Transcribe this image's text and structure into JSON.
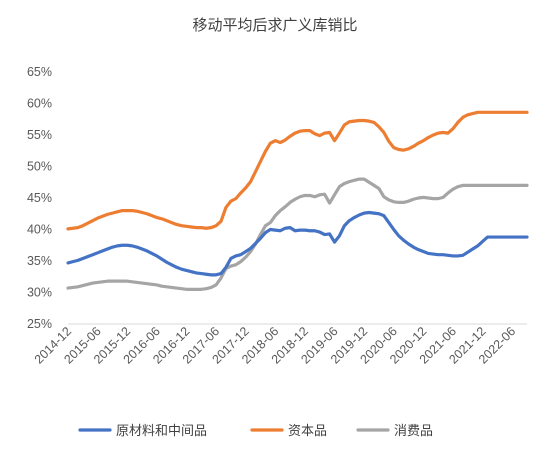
{
  "chart_data": {
    "type": "line",
    "title": "移动平均后求广义库销比",
    "xlabel": "",
    "ylabel": "",
    "ylim": [
      25,
      65
    ],
    "yticks": [
      "25%",
      "30%",
      "35%",
      "40%",
      "45%",
      "50%",
      "55%",
      "60%",
      "65%"
    ],
    "grid": false,
    "legend_position": "bottom",
    "x_tick_labels": [
      "2014-12",
      "2015-06",
      "2015-12",
      "2016-06",
      "2016-12",
      "2017-06",
      "2017-12",
      "2018-06",
      "2018-12",
      "2019-06",
      "2019-12",
      "2020-06",
      "2020-12",
      "2021-06",
      "2021-12",
      "2022-06"
    ],
    "x": [
      "2014-12",
      "2015-01",
      "2015-02",
      "2015-03",
      "2015-04",
      "2015-05",
      "2015-06",
      "2015-07",
      "2015-08",
      "2015-09",
      "2015-10",
      "2015-11",
      "2015-12",
      "2016-01",
      "2016-02",
      "2016-03",
      "2016-04",
      "2016-05",
      "2016-06",
      "2016-07",
      "2016-08",
      "2016-09",
      "2016-10",
      "2016-11",
      "2016-12",
      "2017-01",
      "2017-02",
      "2017-03",
      "2017-04",
      "2017-05",
      "2017-06",
      "2017-07",
      "2017-08",
      "2017-09",
      "2017-10",
      "2017-11",
      "2017-12",
      "2018-01",
      "2018-02",
      "2018-03",
      "2018-04",
      "2018-05",
      "2018-06",
      "2018-07",
      "2018-08",
      "2018-09",
      "2018-10",
      "2018-11",
      "2018-12",
      "2019-01",
      "2019-02",
      "2019-03",
      "2019-04",
      "2019-05",
      "2019-06",
      "2019-07",
      "2019-08",
      "2019-09",
      "2019-10",
      "2019-11",
      "2019-12",
      "2020-01",
      "2020-02",
      "2020-03",
      "2020-04",
      "2020-05",
      "2020-06",
      "2020-07",
      "2020-08",
      "2020-09",
      "2020-10",
      "2020-11",
      "2020-12",
      "2021-01",
      "2021-02",
      "2021-03",
      "2021-04",
      "2021-05",
      "2021-06",
      "2021-07",
      "2021-08",
      "2021-09",
      "2021-10",
      "2021-11",
      "2021-12",
      "2022-01",
      "2022-02",
      "2022-03",
      "2022-04",
      "2022-05",
      "2022-06",
      "2022-07",
      "2022-08",
      "2022-09"
    ],
    "series": [
      {
        "name": "原材料和中间品",
        "color": "#4472c4",
        "values": [
          34.7,
          34.9,
          35.1,
          35.4,
          35.7,
          36.0,
          36.3,
          36.6,
          36.9,
          37.2,
          37.4,
          37.5,
          37.5,
          37.4,
          37.2,
          36.9,
          36.6,
          36.2,
          35.8,
          35.3,
          34.8,
          34.4,
          34.0,
          33.7,
          33.5,
          33.3,
          33.1,
          33.0,
          32.9,
          32.8,
          32.8,
          33.0,
          34.0,
          35.4,
          35.8,
          36.0,
          36.5,
          37.0,
          37.8,
          38.6,
          39.5,
          40.0,
          39.9,
          39.8,
          40.2,
          40.3,
          39.8,
          39.9,
          39.9,
          39.8,
          39.8,
          39.6,
          39.2,
          39.3,
          38.0,
          39.0,
          40.6,
          41.4,
          41.9,
          42.3,
          42.6,
          42.7,
          42.6,
          42.5,
          42.2,
          41.1,
          40.0,
          39.0,
          38.3,
          37.7,
          37.2,
          36.8,
          36.5,
          36.2,
          36.1,
          36.0,
          36.0,
          35.9,
          35.8,
          35.8,
          35.9,
          36.4,
          36.9,
          37.4,
          38.1,
          38.8,
          38.8,
          38.8,
          38.8,
          38.8,
          38.8,
          38.8,
          38.8,
          38.8
        ]
      },
      {
        "name": "资本品",
        "color": "#ed7d31",
        "values": [
          40.1,
          40.2,
          40.3,
          40.6,
          41.0,
          41.4,
          41.8,
          42.1,
          42.4,
          42.6,
          42.8,
          43.0,
          43.0,
          43.0,
          42.9,
          42.7,
          42.5,
          42.2,
          41.9,
          41.7,
          41.4,
          41.1,
          40.8,
          40.6,
          40.5,
          40.4,
          40.3,
          40.3,
          40.2,
          40.3,
          40.6,
          41.3,
          43.5,
          44.5,
          44.9,
          45.8,
          46.6,
          47.6,
          49.2,
          50.8,
          52.4,
          53.7,
          54.1,
          53.8,
          54.2,
          54.8,
          55.3,
          55.6,
          55.7,
          55.7,
          55.2,
          54.9,
          55.3,
          55.4,
          54.1,
          55.3,
          56.6,
          57.1,
          57.2,
          57.3,
          57.3,
          57.2,
          57.0,
          56.3,
          55.4,
          54.0,
          53.0,
          52.7,
          52.6,
          52.8,
          53.2,
          53.7,
          54.1,
          54.6,
          55.0,
          55.3,
          55.4,
          55.3,
          56.0,
          57.0,
          57.8,
          58.2,
          58.4,
          58.6,
          58.6,
          58.6,
          58.6,
          58.6,
          58.6,
          58.6,
          58.6,
          58.6,
          58.6,
          58.6
        ]
      },
      {
        "name": "消费品",
        "color": "#a5a5a5",
        "values": [
          30.7,
          30.8,
          30.9,
          31.1,
          31.3,
          31.5,
          31.6,
          31.7,
          31.8,
          31.8,
          31.8,
          31.8,
          31.8,
          31.7,
          31.6,
          31.5,
          31.4,
          31.3,
          31.2,
          31.0,
          30.9,
          30.8,
          30.7,
          30.6,
          30.5,
          30.5,
          30.5,
          30.5,
          30.6,
          30.8,
          31.2,
          32.3,
          33.8,
          34.2,
          34.4,
          34.9,
          35.6,
          36.5,
          37.7,
          39.2,
          40.6,
          41.1,
          42.2,
          43.0,
          43.6,
          44.3,
          44.8,
          45.2,
          45.4,
          45.4,
          45.2,
          45.5,
          45.6,
          44.2,
          45.5,
          46.8,
          47.3,
          47.6,
          47.8,
          48.0,
          48.0,
          47.5,
          47.0,
          46.5,
          45.2,
          44.7,
          44.4,
          44.3,
          44.3,
          44.5,
          44.8,
          45.0,
          45.1,
          45.0,
          44.9,
          44.9,
          45.1,
          45.8,
          46.4,
          46.8,
          47.0,
          47.0,
          47.0,
          47.0,
          47.0,
          47.0,
          47.0,
          47.0,
          47.0,
          47.0,
          47.0,
          47.0,
          47.0,
          47.0
        ]
      }
    ]
  }
}
